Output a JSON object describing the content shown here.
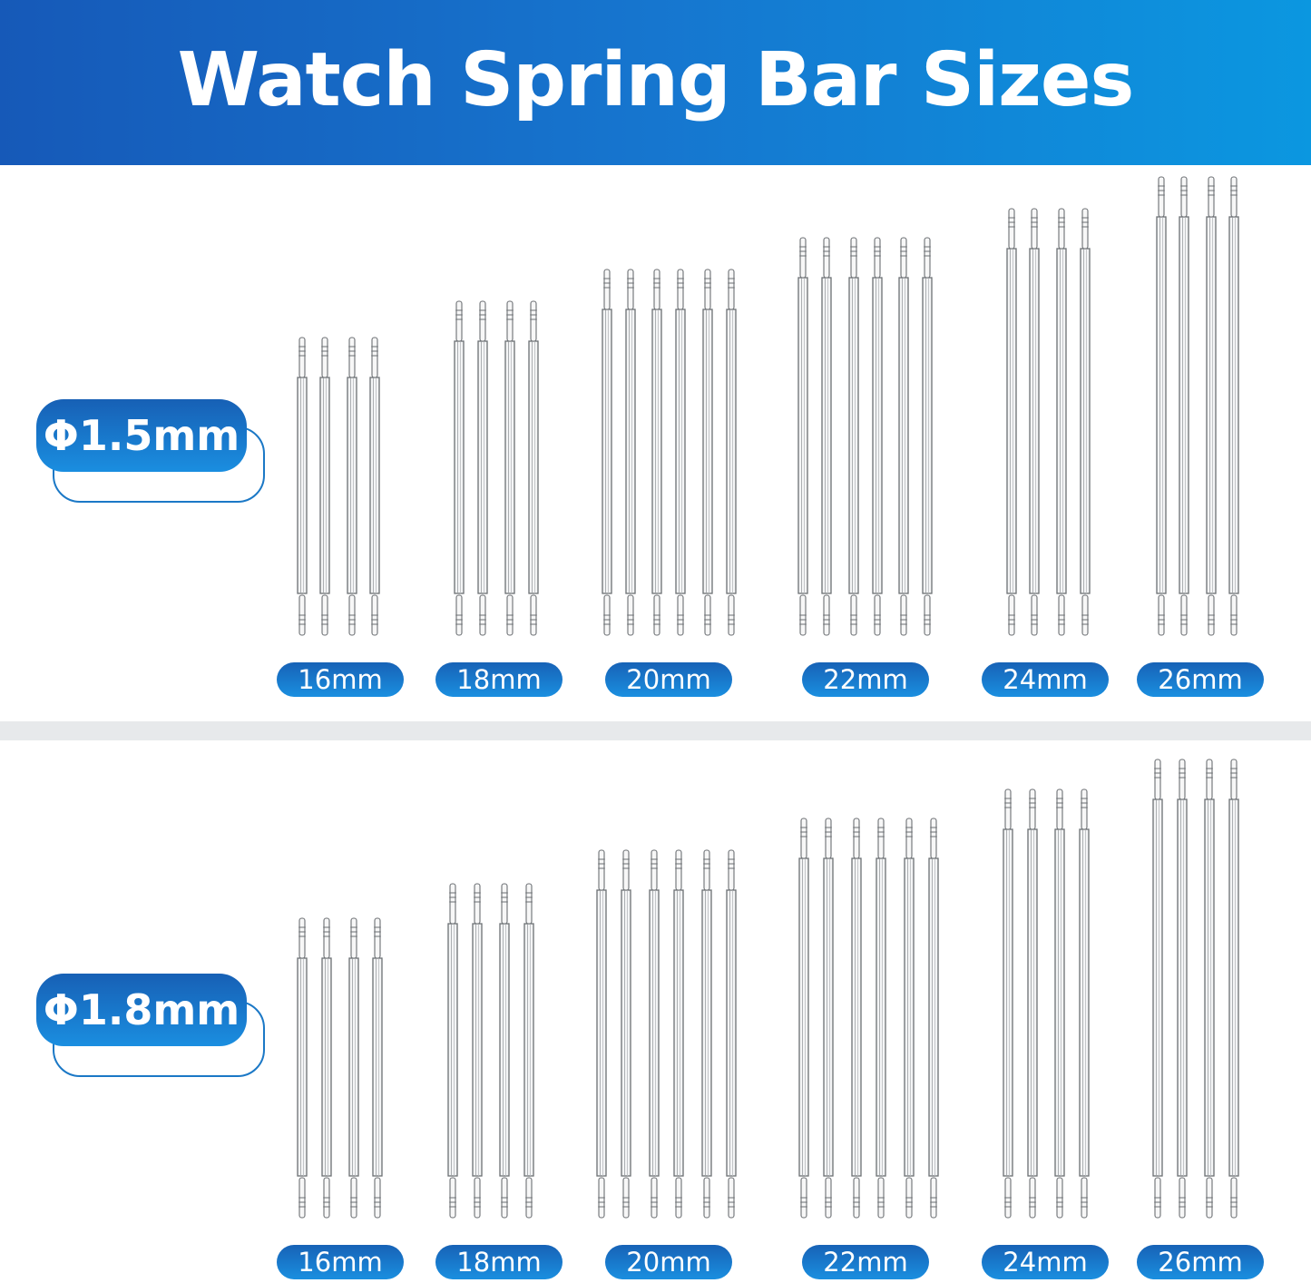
{
  "title": "Watch Spring Bar Sizes",
  "colors": {
    "header_start": "#1659b8",
    "header_end": "#0b97e0",
    "badge": "#1a7fd0",
    "bar_stroke": "#6b6f73"
  },
  "sections": [
    {
      "diameter": "Φ1.5mm",
      "groups": [
        {
          "label": "16mm",
          "bar_count": 4
        },
        {
          "label": "18mm",
          "bar_count": 4
        },
        {
          "label": "20mm",
          "bar_count": 6
        },
        {
          "label": "22mm",
          "bar_count": 6
        },
        {
          "label": "24mm",
          "bar_count": 4
        },
        {
          "label": "26mm",
          "bar_count": 4
        }
      ]
    },
    {
      "diameter": "Φ1.8mm",
      "groups": [
        {
          "label": "16mm",
          "bar_count": 4
        },
        {
          "label": "18mm",
          "bar_count": 4
        },
        {
          "label": "20mm",
          "bar_count": 6
        },
        {
          "label": "22mm",
          "bar_count": 6
        },
        {
          "label": "24mm",
          "bar_count": 4
        },
        {
          "label": "26mm",
          "bar_count": 4
        }
      ]
    }
  ]
}
